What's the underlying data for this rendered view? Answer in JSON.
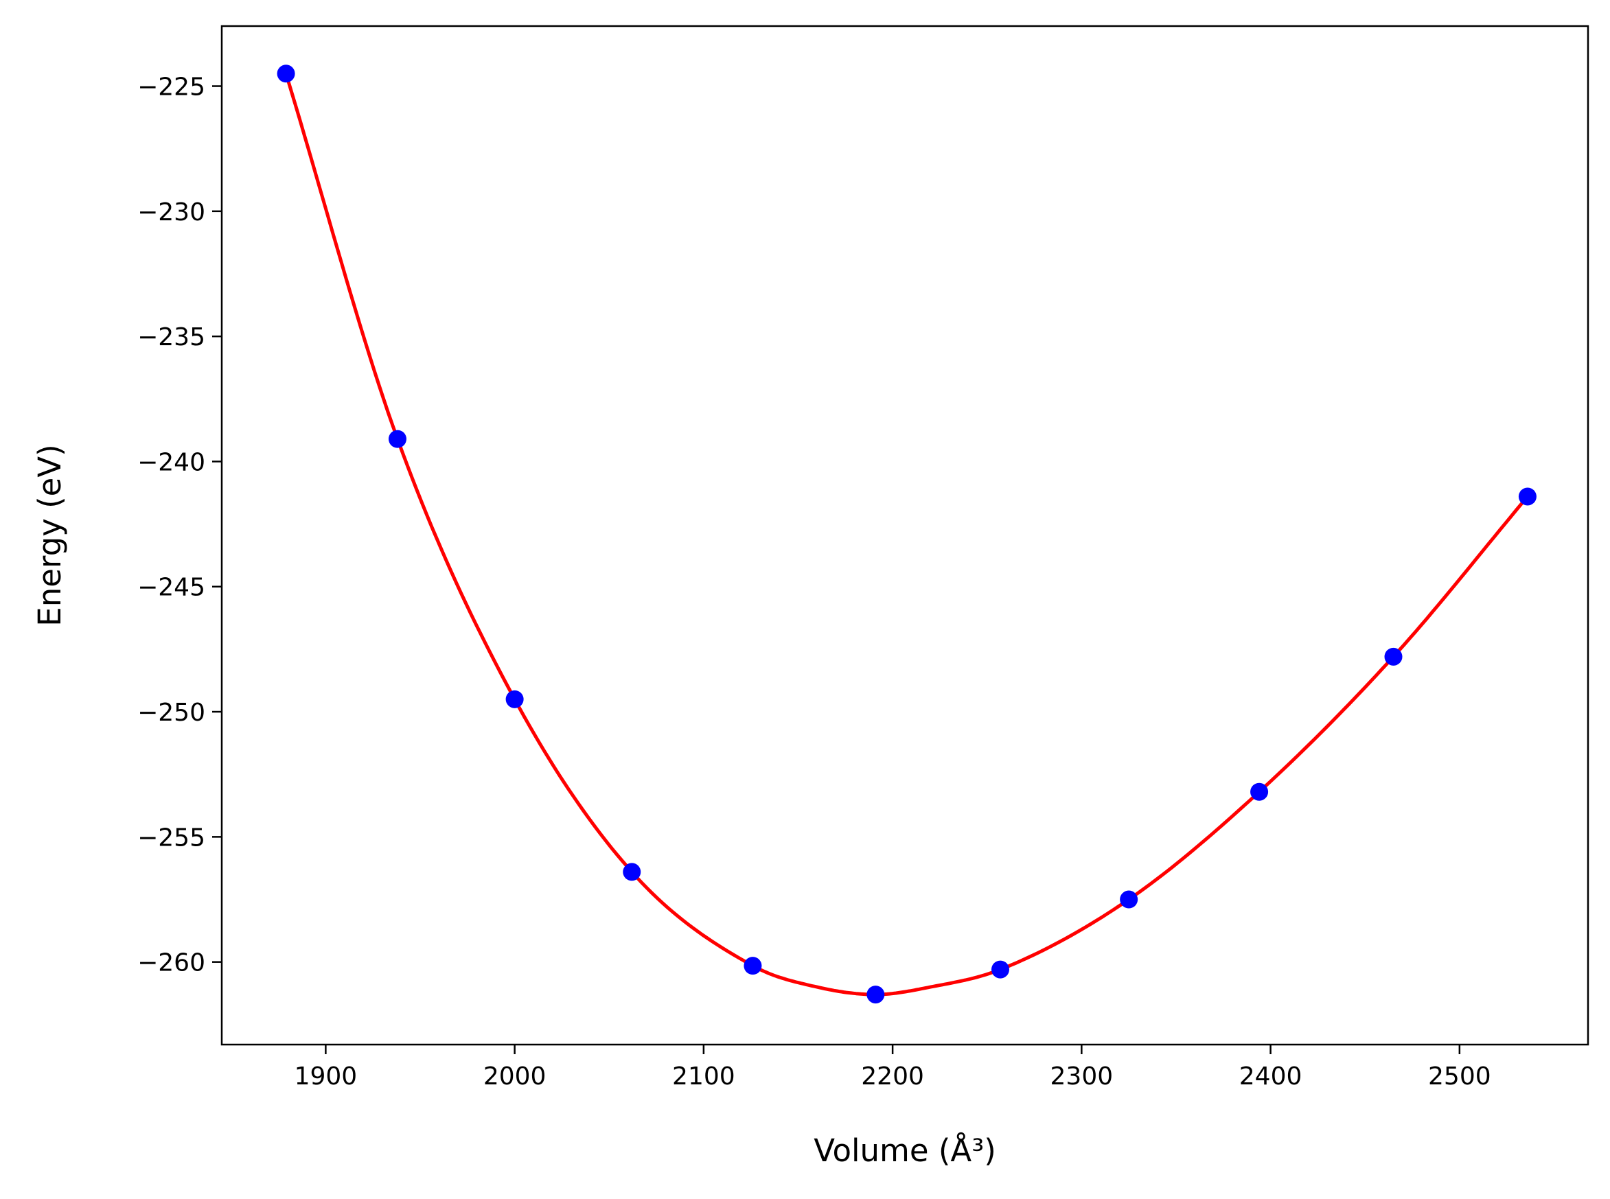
{
  "chart_data": {
    "type": "line",
    "title": "",
    "xlabel": "Volume",
    "xlabel_unit": "(Å³)",
    "ylabel": "Energy",
    "ylabel_unit": "(eV)",
    "xlim": [
      1845,
      2568
    ],
    "ylim": [
      -263.3,
      -222.6
    ],
    "xticks": [
      1900,
      2000,
      2100,
      2200,
      2300,
      2400,
      2500
    ],
    "yticks": [
      -225,
      -230,
      -235,
      -240,
      -245,
      -250,
      -255,
      -260
    ],
    "tick_labels_x": [
      "1900",
      "2000",
      "2100",
      "2200",
      "2300",
      "2400",
      "2500"
    ],
    "tick_labels_y": [
      "−225",
      "−230",
      "−235",
      "−240",
      "−245",
      "−250",
      "−255",
      "−260"
    ],
    "grid": false,
    "series": [
      {
        "kind": "points",
        "color": "#0000ff",
        "x": [
          1879,
          1938,
          2000,
          2062,
          2126,
          2191,
          2257,
          2325,
          2394,
          2465,
          2536
        ],
        "y": [
          -224.5,
          -239.1,
          -249.5,
          -256.4,
          -260.15,
          -261.3,
          -260.3,
          -257.5,
          -253.2,
          -247.8,
          -241.4
        ]
      },
      {
        "kind": "fit",
        "color": "#ff0000",
        "x": [
          1879,
          1938,
          2000,
          2062,
          2126,
          2160,
          2191,
          2220,
          2257,
          2325,
          2394,
          2465,
          2536
        ],
        "y": [
          -224.5,
          -239.1,
          -249.5,
          -256.4,
          -260.15,
          -261.0,
          -261.3,
          -261.0,
          -260.3,
          -257.5,
          -253.2,
          -247.8,
          -241.4
        ]
      }
    ]
  }
}
